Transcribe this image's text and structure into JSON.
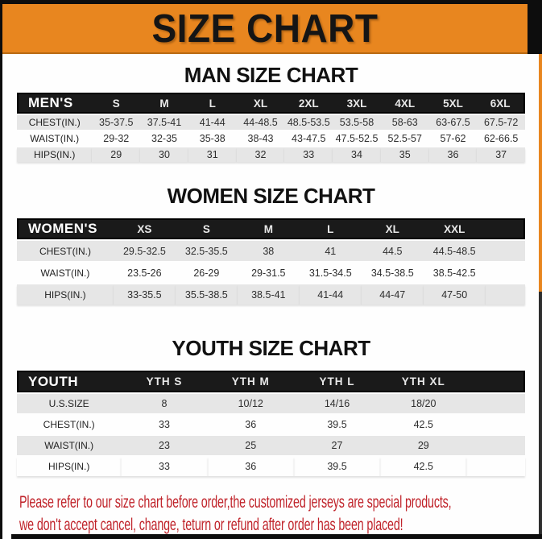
{
  "banner": {
    "title": "SIZE CHART"
  },
  "sections": [
    {
      "heading": "MAN SIZE CHART",
      "header": [
        "MEN'S",
        "S",
        "M",
        "L",
        "XL",
        "2XL",
        "3XL",
        "4XL",
        "5XL",
        "6XL"
      ],
      "rows": [
        [
          "CHEST(IN.)",
          "35-37.5",
          "37.5-41",
          "41-44",
          "44-48.5",
          "48.5-53.5",
          "53.5-58",
          "58-63",
          "63-67.5",
          "67.5-72"
        ],
        [
          "WAIST(IN.)",
          "29-32",
          "32-35",
          "35-38",
          "38-43",
          "43-47.5",
          "47.5-52.5",
          "52.5-57",
          "57-62",
          "62-66.5"
        ],
        [
          "HIPS(IN.)",
          "29",
          "30",
          "31",
          "32",
          "33",
          "34",
          "35",
          "36",
          "37"
        ]
      ]
    },
    {
      "heading": "WOMEN SIZE CHART",
      "header": [
        "WOMEN'S",
        "XS",
        "S",
        "M",
        "L",
        "XL",
        "XXL"
      ],
      "rows": [
        [
          "CHEST(IN.)",
          "29.5-32.5",
          "32.5-35.5",
          "38",
          "41",
          "44.5",
          "44.5-48.5"
        ],
        [
          "WAIST(IN.)",
          "23.5-26",
          "26-29",
          "29-31.5",
          "31.5-34.5",
          "34.5-38.5",
          "38.5-42.5"
        ],
        [
          "HIPS(IN.)",
          "33-35.5",
          "35.5-38.5",
          "38.5-41",
          "41-44",
          "44-47",
          "47-50"
        ]
      ]
    },
    {
      "heading": "YOUTH SIZE CHART",
      "header": [
        "YOUTH",
        "YTH S",
        "YTH M",
        "YTH L",
        "YTH XL"
      ],
      "rows": [
        [
          "U.S.SIZE",
          "8",
          "10/12",
          "14/16",
          "18/20"
        ],
        [
          "CHEST(IN.)",
          "33",
          "36",
          "39.5",
          "42.5"
        ],
        [
          "WAIST(IN.)",
          "23",
          "25",
          "27",
          "29"
        ],
        [
          "HIPS(IN.)",
          "33",
          "36",
          "39.5",
          "42.5"
        ]
      ]
    }
  ],
  "footer": {
    "line1": "Please refer to our size chart before order,the customized jerseys are special products,",
    "line2": "we don't accept cancel, change, teturn or refund after order has been placed!"
  },
  "colors": {
    "banner_orange": "#e8861f",
    "header_black": "#141414",
    "row_gray": "#e6e6e6",
    "notice_red": "#c0232a"
  }
}
